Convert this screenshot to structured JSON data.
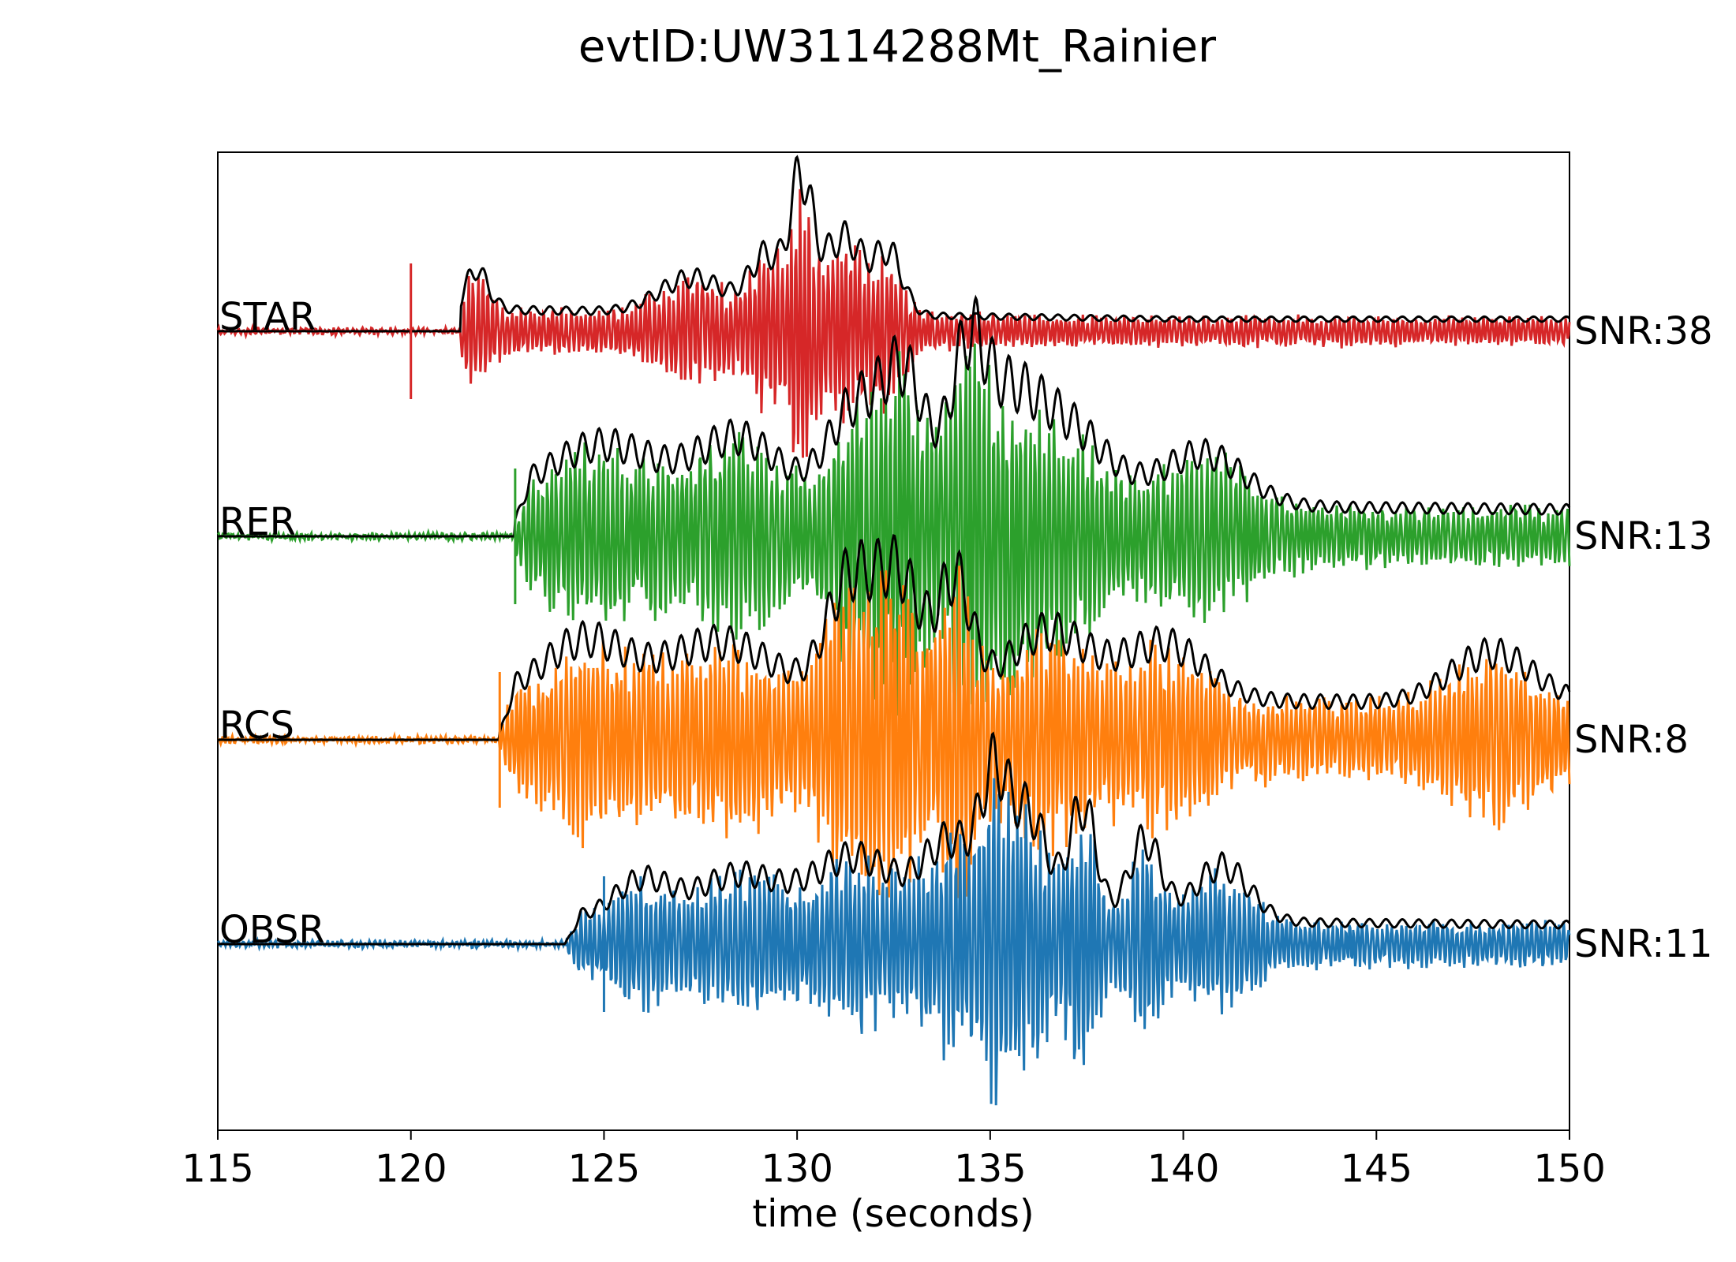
{
  "chart_data": {
    "type": "line",
    "title": "evtID:UW3114288Mt_Rainier",
    "xlabel": "time (seconds)",
    "ylabel": "",
    "xlim": [
      115,
      150
    ],
    "x_ticks": [
      "115",
      "120",
      "125",
      "130",
      "135",
      "140",
      "145",
      "150"
    ],
    "grid": false,
    "envelope_color": "#000000",
    "series": [
      {
        "name": "STAR",
        "snr_label": "SNR:38",
        "color": "#d62728",
        "pick_time": 120.0,
        "onset": 121.3,
        "bursts": [
          {
            "t": 121.6,
            "a": 0.35,
            "w": 0.5
          },
          {
            "t": 127.3,
            "a": 0.28,
            "w": 1.2
          },
          {
            "t": 129.2,
            "a": 0.45,
            "w": 0.6
          },
          {
            "t": 130.1,
            "a": 1.0,
            "w": 0.4
          },
          {
            "t": 131.2,
            "a": 0.62,
            "w": 0.8
          },
          {
            "t": 132.4,
            "a": 0.45,
            "w": 0.5
          }
        ],
        "base": 0.18,
        "decay_end": 140.0,
        "tail": 0.1,
        "seed": 11
      },
      {
        "name": "RER",
        "snr_label": "SNR:13",
        "color": "#2ca02c",
        "pick_time": 122.7,
        "onset": 122.7,
        "bursts": [
          {
            "t": 125.0,
            "a": 0.45,
            "w": 2.0
          },
          {
            "t": 128.5,
            "a": 0.5,
            "w": 1.5
          },
          {
            "t": 131.5,
            "a": 0.75,
            "w": 1.0
          },
          {
            "t": 132.8,
            "a": 0.95,
            "w": 0.8
          },
          {
            "t": 134.4,
            "a": 0.9,
            "w": 0.6
          },
          {
            "t": 135.3,
            "a": 0.75,
            "w": 1.2
          },
          {
            "t": 137.0,
            "a": 0.6,
            "w": 1.5
          },
          {
            "t": 140.5,
            "a": 0.42,
            "w": 1.5
          }
        ],
        "base": 0.3,
        "decay_end": 150.0,
        "tail": 0.22,
        "seed": 23
      },
      {
        "name": "RCS",
        "snr_label": "SNR:8",
        "color": "#ff7f0e",
        "pick_time": 122.3,
        "onset": 122.3,
        "bursts": [
          {
            "t": 124.5,
            "a": 0.45,
            "w": 1.5
          },
          {
            "t": 128.0,
            "a": 0.45,
            "w": 2.0
          },
          {
            "t": 131.3,
            "a": 0.85,
            "w": 0.8
          },
          {
            "t": 132.6,
            "a": 1.0,
            "w": 0.9
          },
          {
            "t": 134.1,
            "a": 0.9,
            "w": 0.6
          },
          {
            "t": 136.5,
            "a": 0.55,
            "w": 1.5
          },
          {
            "t": 139.5,
            "a": 0.45,
            "w": 1.5
          },
          {
            "t": 148.0,
            "a": 0.4,
            "w": 1.5
          }
        ],
        "base": 0.35,
        "decay_end": 150.0,
        "tail": 0.3,
        "seed": 37
      },
      {
        "name": "OBSR",
        "snr_label": "SNR:11",
        "color": "#1f77b4",
        "pick_time": 125.0,
        "onset": 124.0,
        "bursts": [
          {
            "t": 126.0,
            "a": 0.3,
            "w": 1.0
          },
          {
            "t": 128.5,
            "a": 0.35,
            "w": 1.5
          },
          {
            "t": 131.5,
            "a": 0.5,
            "w": 1.5
          },
          {
            "t": 134.0,
            "a": 0.62,
            "w": 1.0
          },
          {
            "t": 135.1,
            "a": 0.92,
            "w": 0.5
          },
          {
            "t": 136.0,
            "a": 0.85,
            "w": 0.7
          },
          {
            "t": 137.4,
            "a": 0.92,
            "w": 0.5
          },
          {
            "t": 139.0,
            "a": 0.65,
            "w": 0.6
          },
          {
            "t": 141.0,
            "a": 0.45,
            "w": 1.0
          }
        ],
        "base": 0.22,
        "decay_end": 150.0,
        "tail": 0.16,
        "seed": 51
      }
    ]
  }
}
